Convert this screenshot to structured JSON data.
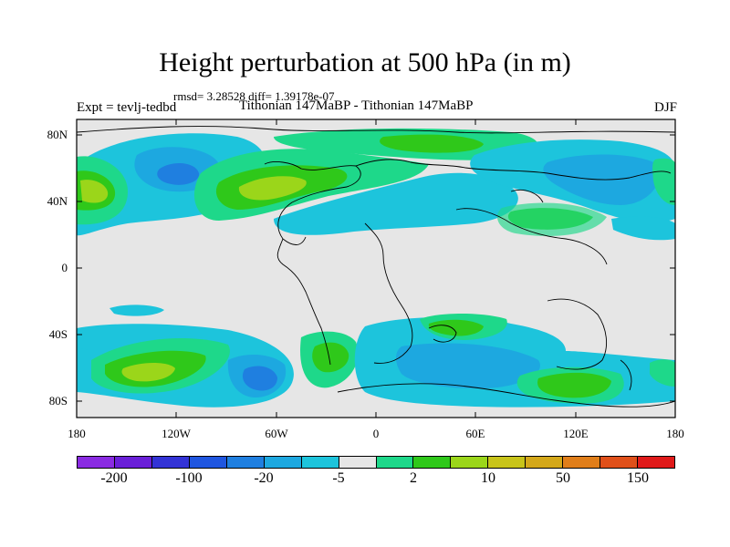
{
  "header": {
    "title": "Height perturbation at 500 hPa (in m)",
    "stats": "rmsd= 3.28528 diff= 1.39178e-07",
    "expt": "Expt = tevlj-tedbd",
    "runs": "Tithonian 147MaBP - Tithonian 147MaBP",
    "season": "DJF"
  },
  "map": {
    "lat_labels": [
      "80N",
      "40N",
      "0",
      "40S",
      "80S"
    ],
    "lon_labels": [
      "180",
      "120W",
      "60W",
      "0",
      "60E",
      "120E",
      "180"
    ]
  },
  "colorbar": {
    "colors": [
      "#8a2be2",
      "#6a1fd8",
      "#3333d6",
      "#1f56e0",
      "#1f7fe0",
      "#1da8e0",
      "#1dc4dc",
      "#e6e6e6",
      "#1ed88a",
      "#2fc81a",
      "#9bd61a",
      "#c8c41a",
      "#d4a81a",
      "#e07e1a",
      "#e0501a",
      "#e01a1a"
    ],
    "labels": [
      "-200",
      "-100",
      "-20",
      "-5",
      "2",
      "10",
      "50",
      "150"
    ]
  },
  "palette": {
    "neutral": "#e6e6e6",
    "cyan": "#1dc4dc",
    "lightblue": "#1da8e0",
    "blue": "#1f7fe0",
    "teal": "#1ed88a",
    "green": "#2fc81a",
    "yellowgreen": "#9bd61a"
  }
}
